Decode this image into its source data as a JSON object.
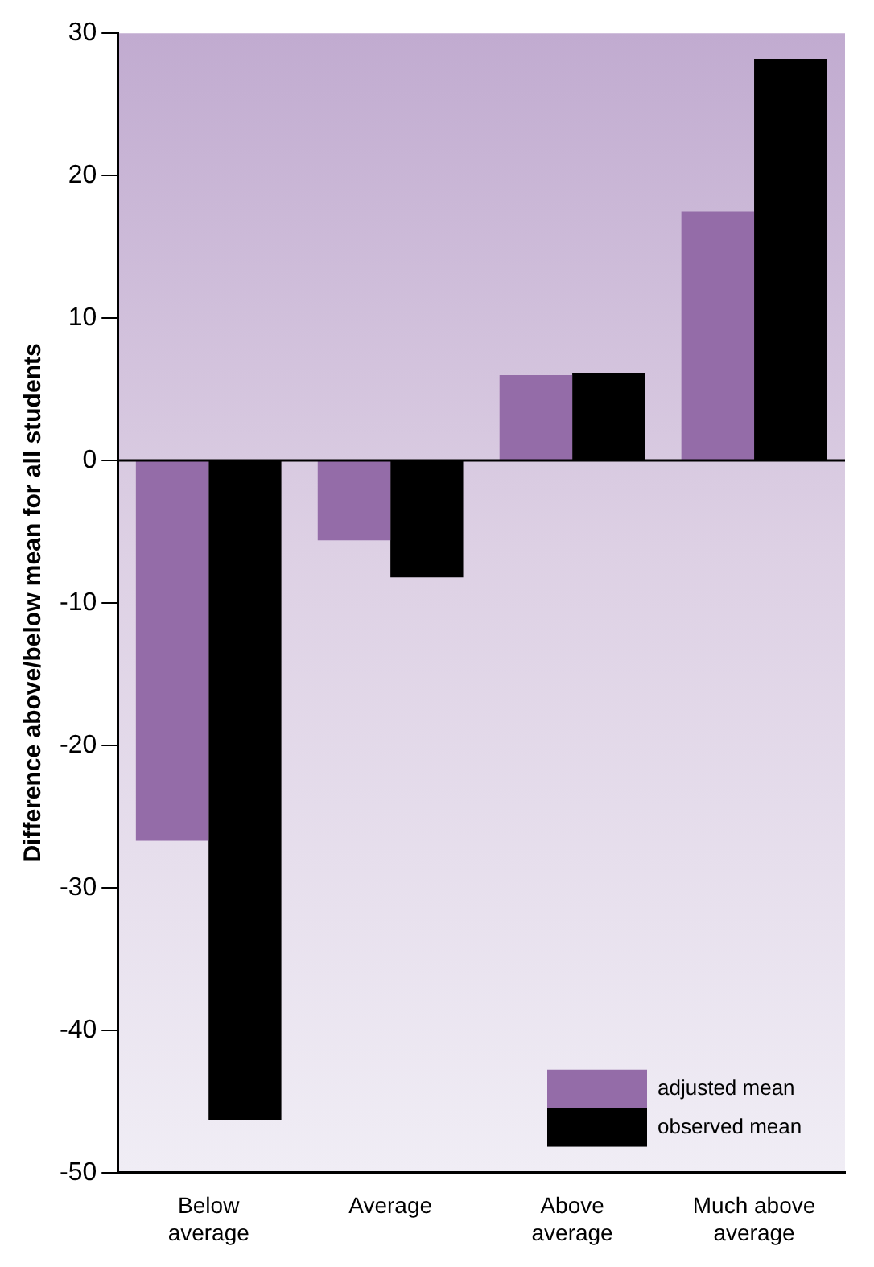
{
  "chart_data": {
    "type": "bar",
    "categories": [
      "Below\naverage",
      "Average",
      "Above\naverage",
      "Much above\naverage"
    ],
    "ylabel": "Difference above/below mean for all students",
    "series": [
      {
        "name": "adjusted mean",
        "color": "#946ca8",
        "values": [
          -26.7,
          -5.6,
          6.0,
          17.5
        ]
      },
      {
        "name": "observed mean",
        "color": "#000000",
        "values": [
          -46.3,
          -8.2,
          6.1,
          28.2
        ]
      }
    ],
    "ylim": [
      -50,
      30
    ],
    "yticks": [
      -50,
      -40,
      -30,
      -20,
      -10,
      0,
      10,
      20,
      30
    ],
    "grid": false,
    "legend": "bottom right",
    "ref_lines": [
      {
        "axis": "y",
        "value": 0,
        "color": "#000000"
      }
    ]
  }
}
